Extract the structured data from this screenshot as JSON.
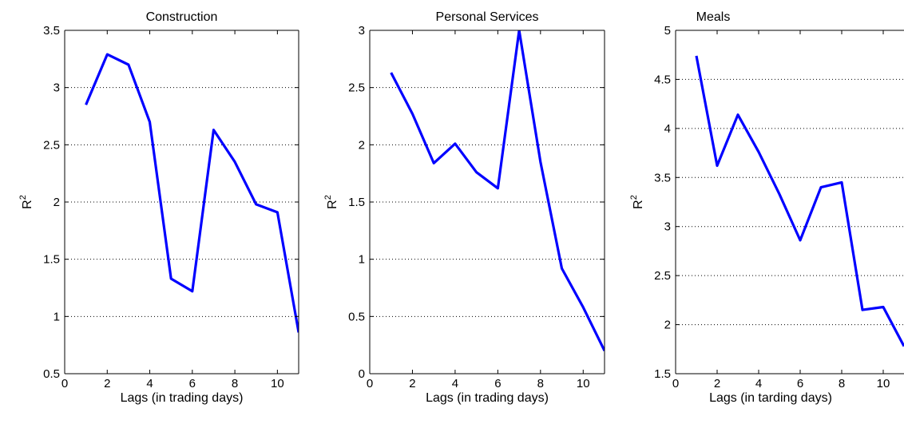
{
  "chart_data": [
    {
      "type": "line",
      "title": "Construction",
      "xlabel": "Lags (in trading days)",
      "ylabel_base": "R",
      "ylabel_sup": "2",
      "xlim": [
        0,
        11
      ],
      "ylim": [
        0.5,
        3.5
      ],
      "xticks": [
        0,
        2,
        4,
        6,
        8,
        10
      ],
      "yticks": [
        0.5,
        1,
        1.5,
        2,
        2.5,
        3,
        3.5
      ],
      "ytick_labels": [
        "0.5",
        "1",
        "1.5",
        "2",
        "2.5",
        "3",
        "3.5"
      ],
      "grid": "y-dotted",
      "series": [
        {
          "x": [
            1,
            2,
            3,
            4,
            5,
            6,
            7,
            8,
            9,
            10,
            11
          ],
          "values": [
            2.85,
            3.29,
            3.2,
            2.7,
            1.33,
            1.22,
            2.63,
            2.35,
            1.98,
            1.91,
            0.86
          ]
        }
      ]
    },
    {
      "type": "line",
      "title": "Personal Services",
      "xlabel": "Lags (in trading days)",
      "ylabel_base": "R",
      "ylabel_sup": "2",
      "xlim": [
        0,
        11
      ],
      "ylim": [
        0,
        3
      ],
      "xticks": [
        0,
        2,
        4,
        6,
        8,
        10
      ],
      "yticks": [
        0,
        0.5,
        1,
        1.5,
        2,
        2.5,
        3
      ],
      "ytick_labels": [
        "0",
        "0.5",
        "1",
        "1.5",
        "2",
        "2.5",
        "3"
      ],
      "grid": "y-dotted",
      "series": [
        {
          "x": [
            1,
            2,
            3,
            4,
            5,
            6,
            7,
            8,
            9,
            10,
            11
          ],
          "values": [
            2.63,
            2.27,
            1.84,
            2.01,
            1.76,
            1.62,
            3.0,
            1.85,
            0.92,
            0.58,
            0.2
          ]
        }
      ]
    },
    {
      "type": "line",
      "title": "Meals",
      "xlabel": "Lags (in tarding days)",
      "ylabel_base": "R",
      "ylabel_sup": "2",
      "xlim": [
        0,
        11
      ],
      "ylim": [
        1.5,
        5
      ],
      "xticks": [
        0,
        2,
        4,
        6,
        8,
        10
      ],
      "yticks": [
        1.5,
        2,
        2.5,
        3,
        3.5,
        4,
        4.5,
        5
      ],
      "ytick_labels": [
        "1.5",
        "2",
        "2.5",
        "3",
        "3.5",
        "4",
        "4.5",
        "5"
      ],
      "grid": "y-dotted",
      "series": [
        {
          "x": [
            1,
            2,
            3,
            4,
            5,
            6,
            7,
            8,
            9,
            10,
            11
          ],
          "values": [
            4.74,
            3.62,
            4.14,
            3.76,
            3.33,
            2.86,
            3.4,
            3.45,
            2.15,
            2.18,
            1.78
          ]
        }
      ]
    }
  ],
  "colors": {
    "line": "#0000ff",
    "axes": "#000000",
    "grid": "#000000",
    "background": "#ffffff"
  }
}
